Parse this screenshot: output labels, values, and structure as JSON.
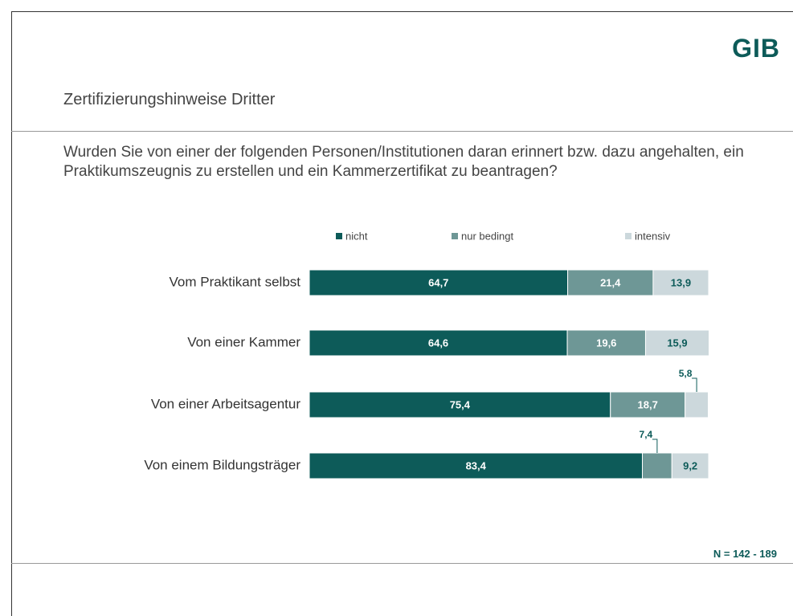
{
  "logo": "GIB",
  "chart_data": {
    "type": "stacked-bar-horizontal",
    "title": "Zertifizierungshinweise Dritter",
    "subtitle": "Wurden Sie von einer der folgenden Personen/Institutionen daran erinnert bzw. dazu angehalten, ein Praktikumszeugnis zu erstellen und ein Kammerzertifikat zu beantragen?",
    "categories": [
      "Vom Praktikant selbst",
      "Von einer Kammer",
      "Von einer Arbeitsagentur",
      "Von einem Bildungsträger"
    ],
    "series": [
      {
        "name": "nicht",
        "color": "#0d5b59",
        "values": [
          64.7,
          64.6,
          75.4,
          83.4
        ],
        "value_labels": [
          "64,7",
          "64,6",
          "75,4",
          "83,4"
        ]
      },
      {
        "name": "nur bedingt",
        "color": "#6e9796",
        "values": [
          21.4,
          19.6,
          18.7,
          7.4
        ],
        "value_labels": [
          "21,4",
          "19,6",
          "18,7",
          "7,4"
        ]
      },
      {
        "name": "intensiv",
        "color": "#ccd8dc",
        "values": [
          13.9,
          15.9,
          5.8,
          9.2
        ],
        "value_labels": [
          "13,9",
          "15,9",
          "5,8",
          "9,2"
        ]
      }
    ],
    "note": "N = 142 - 189"
  }
}
